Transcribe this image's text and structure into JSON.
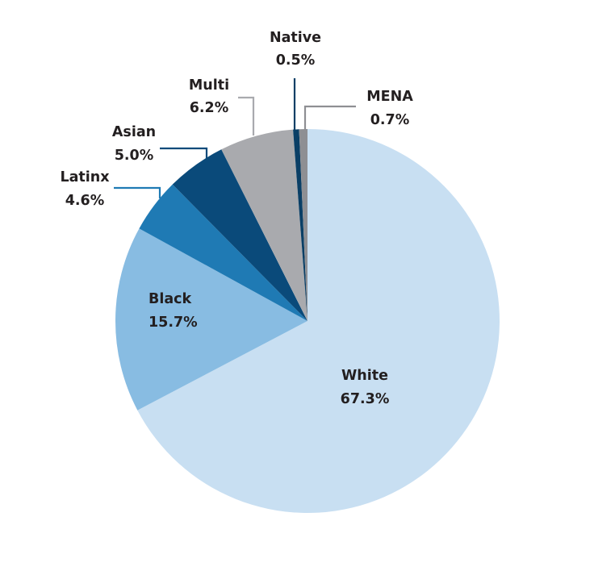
{
  "chart_data": {
    "type": "pie",
    "title": "",
    "start_angle": "12 o'clock",
    "direction": "clockwise",
    "slices": [
      {
        "label": "White",
        "value": 67.3,
        "display": "67.3%",
        "color": "#c8dff2"
      },
      {
        "label": "Black",
        "value": 15.7,
        "display": "15.7%",
        "color": "#88bce2"
      },
      {
        "label": "Latinx",
        "value": 4.6,
        "display": "4.6%",
        "color": "#1f7ab4"
      },
      {
        "label": "Asian",
        "value": 5.0,
        "display": "5.0%",
        "color": "#0a4a7a"
      },
      {
        "label": "Multi",
        "value": 6.2,
        "display": "6.2%",
        "color": "#a9aaae"
      },
      {
        "label": "Native",
        "value": 0.5,
        "display": "0.5%",
        "color": "#0a3f66"
      },
      {
        "label": "MENA",
        "value": 0.7,
        "display": "0.7%",
        "color": "#8e8f93"
      }
    ],
    "categories": [
      "White",
      "Black",
      "Latinx",
      "Asian",
      "Multi",
      "Native",
      "MENA"
    ],
    "values": [
      67.3,
      15.7,
      4.6,
      5.0,
      6.2,
      0.5,
      0.7
    ],
    "legend": "none (direct labels with leader lines)"
  },
  "labels": {
    "white": {
      "name": "White",
      "pct": "67.3%"
    },
    "black": {
      "name": "Black",
      "pct": "15.7%"
    },
    "latinx": {
      "name": "Latinx",
      "pct": "4.6%"
    },
    "asian": {
      "name": "Asian",
      "pct": "5.0%"
    },
    "multi": {
      "name": "Multi",
      "pct": "6.2%"
    },
    "native": {
      "name": "Native",
      "pct": "0.5%"
    },
    "mena": {
      "name": "MENA",
      "pct": "0.7%"
    }
  }
}
